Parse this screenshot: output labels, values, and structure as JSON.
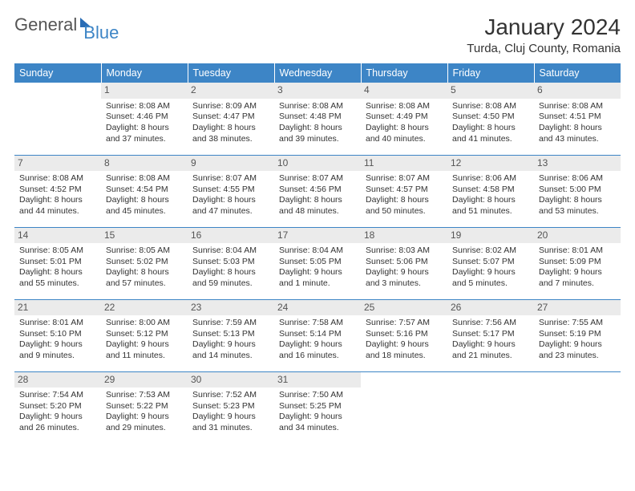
{
  "brand": {
    "part1": "General",
    "part2": "Blue"
  },
  "title": "January 2024",
  "location": "Turda, Cluj County, Romania",
  "weekdays": [
    "Sunday",
    "Monday",
    "Tuesday",
    "Wednesday",
    "Thursday",
    "Friday",
    "Saturday"
  ],
  "colors": {
    "header_bg": "#3d85c6",
    "header_text": "#ffffff",
    "daynum_bg": "#ebebeb",
    "daynum_text": "#555555",
    "body_text": "#333333",
    "logo_accent": "#2a6db5",
    "border": "#3d85c6"
  },
  "typography": {
    "title_fontsize": 28,
    "location_fontsize": 15,
    "weekday_fontsize": 12.5,
    "cell_fontsize": 10.5
  },
  "grid": {
    "rows": 5,
    "cols": 7,
    "first_day_col": 1,
    "days_in_month": 31
  },
  "days": [
    {
      "n": 1,
      "sunrise": "8:08 AM",
      "sunset": "4:46 PM",
      "daylight": "8 hours and 37 minutes."
    },
    {
      "n": 2,
      "sunrise": "8:09 AM",
      "sunset": "4:47 PM",
      "daylight": "8 hours and 38 minutes."
    },
    {
      "n": 3,
      "sunrise": "8:08 AM",
      "sunset": "4:48 PM",
      "daylight": "8 hours and 39 minutes."
    },
    {
      "n": 4,
      "sunrise": "8:08 AM",
      "sunset": "4:49 PM",
      "daylight": "8 hours and 40 minutes."
    },
    {
      "n": 5,
      "sunrise": "8:08 AM",
      "sunset": "4:50 PM",
      "daylight": "8 hours and 41 minutes."
    },
    {
      "n": 6,
      "sunrise": "8:08 AM",
      "sunset": "4:51 PM",
      "daylight": "8 hours and 43 minutes."
    },
    {
      "n": 7,
      "sunrise": "8:08 AM",
      "sunset": "4:52 PM",
      "daylight": "8 hours and 44 minutes."
    },
    {
      "n": 8,
      "sunrise": "8:08 AM",
      "sunset": "4:54 PM",
      "daylight": "8 hours and 45 minutes."
    },
    {
      "n": 9,
      "sunrise": "8:07 AM",
      "sunset": "4:55 PM",
      "daylight": "8 hours and 47 minutes."
    },
    {
      "n": 10,
      "sunrise": "8:07 AM",
      "sunset": "4:56 PM",
      "daylight": "8 hours and 48 minutes."
    },
    {
      "n": 11,
      "sunrise": "8:07 AM",
      "sunset": "4:57 PM",
      "daylight": "8 hours and 50 minutes."
    },
    {
      "n": 12,
      "sunrise": "8:06 AM",
      "sunset": "4:58 PM",
      "daylight": "8 hours and 51 minutes."
    },
    {
      "n": 13,
      "sunrise": "8:06 AM",
      "sunset": "5:00 PM",
      "daylight": "8 hours and 53 minutes."
    },
    {
      "n": 14,
      "sunrise": "8:05 AM",
      "sunset": "5:01 PM",
      "daylight": "8 hours and 55 minutes."
    },
    {
      "n": 15,
      "sunrise": "8:05 AM",
      "sunset": "5:02 PM",
      "daylight": "8 hours and 57 minutes."
    },
    {
      "n": 16,
      "sunrise": "8:04 AM",
      "sunset": "5:03 PM",
      "daylight": "8 hours and 59 minutes."
    },
    {
      "n": 17,
      "sunrise": "8:04 AM",
      "sunset": "5:05 PM",
      "daylight": "9 hours and 1 minute."
    },
    {
      "n": 18,
      "sunrise": "8:03 AM",
      "sunset": "5:06 PM",
      "daylight": "9 hours and 3 minutes."
    },
    {
      "n": 19,
      "sunrise": "8:02 AM",
      "sunset": "5:07 PM",
      "daylight": "9 hours and 5 minutes."
    },
    {
      "n": 20,
      "sunrise": "8:01 AM",
      "sunset": "5:09 PM",
      "daylight": "9 hours and 7 minutes."
    },
    {
      "n": 21,
      "sunrise": "8:01 AM",
      "sunset": "5:10 PM",
      "daylight": "9 hours and 9 minutes."
    },
    {
      "n": 22,
      "sunrise": "8:00 AM",
      "sunset": "5:12 PM",
      "daylight": "9 hours and 11 minutes."
    },
    {
      "n": 23,
      "sunrise": "7:59 AM",
      "sunset": "5:13 PM",
      "daylight": "9 hours and 14 minutes."
    },
    {
      "n": 24,
      "sunrise": "7:58 AM",
      "sunset": "5:14 PM",
      "daylight": "9 hours and 16 minutes."
    },
    {
      "n": 25,
      "sunrise": "7:57 AM",
      "sunset": "5:16 PM",
      "daylight": "9 hours and 18 minutes."
    },
    {
      "n": 26,
      "sunrise": "7:56 AM",
      "sunset": "5:17 PM",
      "daylight": "9 hours and 21 minutes."
    },
    {
      "n": 27,
      "sunrise": "7:55 AM",
      "sunset": "5:19 PM",
      "daylight": "9 hours and 23 minutes."
    },
    {
      "n": 28,
      "sunrise": "7:54 AM",
      "sunset": "5:20 PM",
      "daylight": "9 hours and 26 minutes."
    },
    {
      "n": 29,
      "sunrise": "7:53 AM",
      "sunset": "5:22 PM",
      "daylight": "9 hours and 29 minutes."
    },
    {
      "n": 30,
      "sunrise": "7:52 AM",
      "sunset": "5:23 PM",
      "daylight": "9 hours and 31 minutes."
    },
    {
      "n": 31,
      "sunrise": "7:50 AM",
      "sunset": "5:25 PM",
      "daylight": "9 hours and 34 minutes."
    }
  ],
  "labels": {
    "sunrise": "Sunrise:",
    "sunset": "Sunset:",
    "daylight": "Daylight:"
  }
}
